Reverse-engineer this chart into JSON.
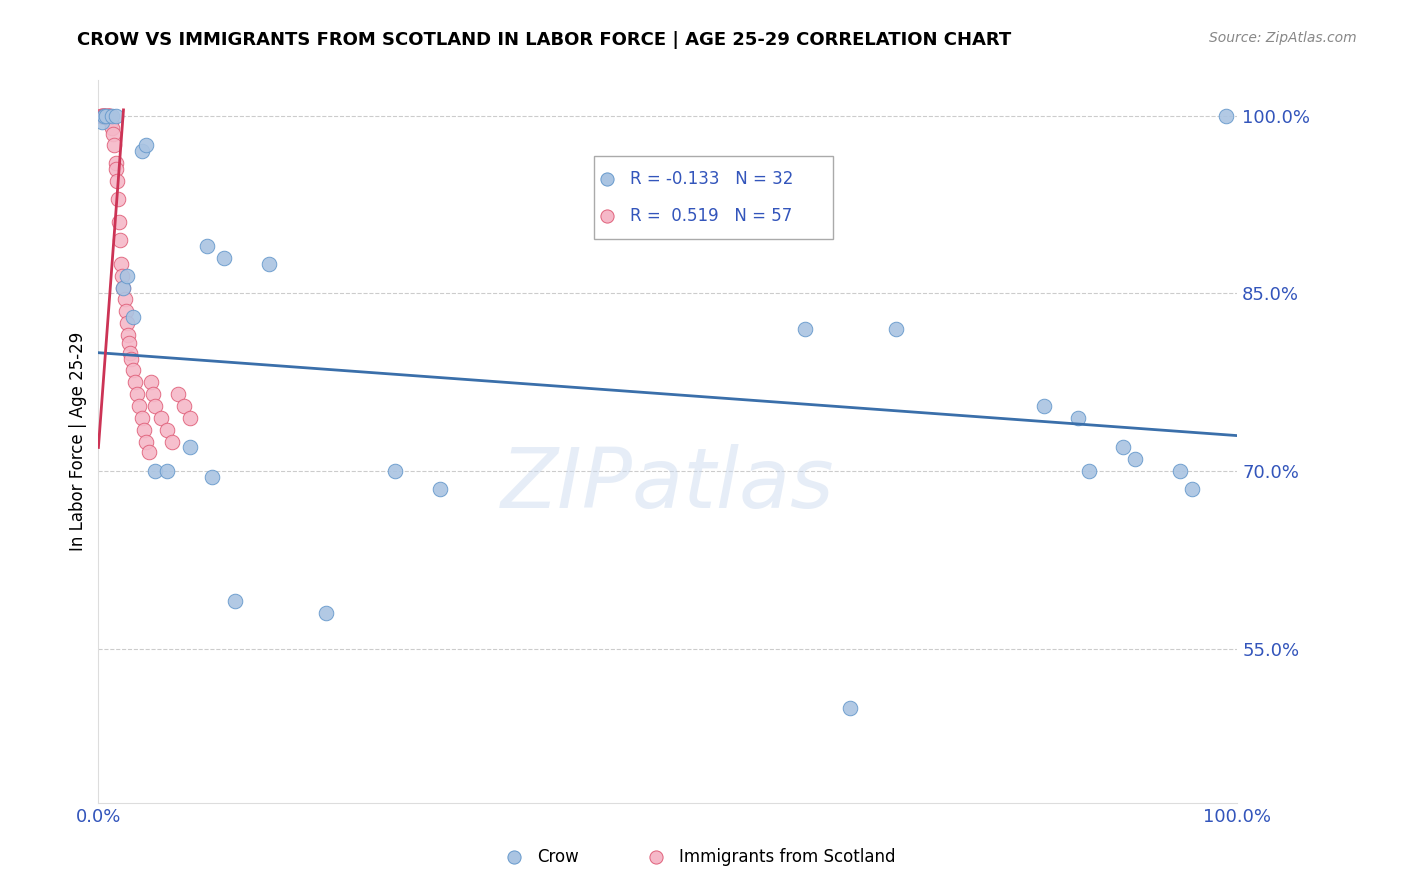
{
  "title": "CROW VS IMMIGRANTS FROM SCOTLAND IN LABOR FORCE | AGE 25-29 CORRELATION CHART",
  "source": "Source: ZipAtlas.com",
  "ylabel": "In Labor Force | Age 25-29",
  "watermark": "ZIPatlas",
  "xmin": 0.0,
  "xmax": 1.0,
  "ymin": 0.42,
  "ymax": 1.03,
  "yticks": [
    0.55,
    0.7,
    0.85,
    1.0
  ],
  "ytick_labels": [
    "55.0%",
    "70.0%",
    "85.0%",
    "100.0%"
  ],
  "xtick_labels": [
    "0.0%",
    "100.0%"
  ],
  "xtick_vals": [
    0.0,
    1.0
  ],
  "legend_crow_R": "-0.133",
  "legend_crow_N": "32",
  "legend_scot_R": "0.519",
  "legend_scot_N": "57",
  "crow_color": "#aac4e2",
  "crow_edge_color": "#6699cc",
  "scot_color": "#f5b8c8",
  "scot_edge_color": "#e0607a",
  "trendline_crow_color": "#3a6faa",
  "trendline_scot_color": "#cc3355",
  "grid_color": "#cccccc",
  "axis_color": "#3355bb",
  "crow_x": [
    0.003,
    0.005,
    0.007,
    0.012,
    0.015,
    0.022,
    0.025,
    0.03,
    0.038,
    0.042,
    0.05,
    0.06,
    0.08,
    0.095,
    0.11,
    0.15,
    0.2,
    0.26,
    0.3,
    0.62,
    0.66,
    0.83,
    0.86,
    0.87,
    0.9,
    0.91,
    0.95,
    0.96,
    0.99,
    0.1,
    0.12,
    0.7
  ],
  "crow_y": [
    0.995,
    1.0,
    1.0,
    1.0,
    1.0,
    0.855,
    0.865,
    0.83,
    0.97,
    0.975,
    0.7,
    0.7,
    0.72,
    0.89,
    0.88,
    0.875,
    0.58,
    0.7,
    0.685,
    0.82,
    0.5,
    0.755,
    0.745,
    0.7,
    0.72,
    0.71,
    0.7,
    0.685,
    1.0,
    0.695,
    0.59,
    0.82
  ],
  "scot_x": [
    0.002,
    0.002,
    0.003,
    0.003,
    0.004,
    0.004,
    0.005,
    0.005,
    0.005,
    0.006,
    0.006,
    0.007,
    0.007,
    0.008,
    0.008,
    0.008,
    0.009,
    0.009,
    0.01,
    0.01,
    0.011,
    0.012,
    0.013,
    0.014,
    0.015,
    0.015,
    0.016,
    0.017,
    0.018,
    0.019,
    0.02,
    0.021,
    0.022,
    0.023,
    0.024,
    0.025,
    0.026,
    0.027,
    0.028,
    0.029,
    0.03,
    0.032,
    0.034,
    0.036,
    0.038,
    0.04,
    0.042,
    0.044,
    0.046,
    0.048,
    0.05,
    0.055,
    0.06,
    0.065,
    0.07,
    0.075,
    0.08
  ],
  "scot_y": [
    1.0,
    1.0,
    1.0,
    1.0,
    1.0,
    1.0,
    1.0,
    1.0,
    1.0,
    1.0,
    1.0,
    1.0,
    1.0,
    1.0,
    1.0,
    1.0,
    1.0,
    1.0,
    1.0,
    1.0,
    0.995,
    0.99,
    0.985,
    0.975,
    0.96,
    0.955,
    0.945,
    0.93,
    0.91,
    0.895,
    0.875,
    0.865,
    0.855,
    0.845,
    0.835,
    0.825,
    0.815,
    0.808,
    0.8,
    0.795,
    0.785,
    0.775,
    0.765,
    0.755,
    0.745,
    0.735,
    0.725,
    0.716,
    0.775,
    0.765,
    0.755,
    0.745,
    0.735,
    0.725,
    0.765,
    0.755,
    0.745
  ],
  "crow_trendline_x": [
    0.0,
    1.0
  ],
  "crow_trendline_y": [
    0.8,
    0.73
  ],
  "scot_trendline_x": [
    0.0,
    0.022
  ],
  "scot_trendline_y": [
    0.72,
    1.005
  ]
}
